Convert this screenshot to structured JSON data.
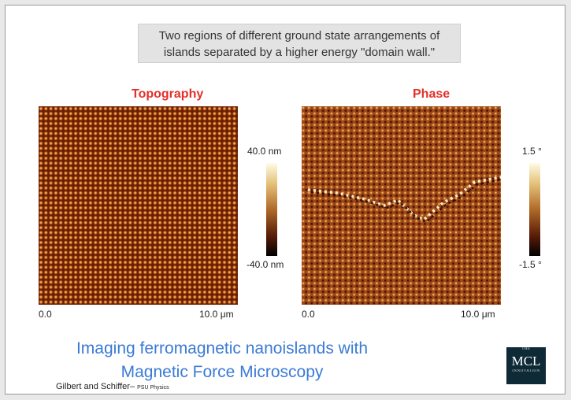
{
  "caption": {
    "line1": "Two regions of different ground state arrangements of",
    "line2": "islands separated by a higher energy \"domain wall.\""
  },
  "panels": {
    "topography": {
      "title": "Topography",
      "x_start": "0.0",
      "x_end": "10.0 μm",
      "scale_max": "40.0 nm",
      "scale_min": "-40.0 nm"
    },
    "phase": {
      "title": "Phase",
      "x_start": "0.0",
      "x_end": "10.0 μm",
      "scale_max": "1.5 °",
      "scale_min": "-1.5 °"
    }
  },
  "main_title": {
    "line1": "Imaging ferromagnetic nanoislands with",
    "line2": "Magnetic Force Microscopy"
  },
  "credit": {
    "authors": "Gilbert and Schiffer–",
    "affiliation": "PSU Physics"
  },
  "logo": {
    "top": "THE",
    "main": "MCL",
    "bottom": "INNOVATION"
  },
  "colors": {
    "title_red": "#e3302a",
    "main_title_blue": "#3a7bd5",
    "logo_bg": "#0d2a36"
  }
}
